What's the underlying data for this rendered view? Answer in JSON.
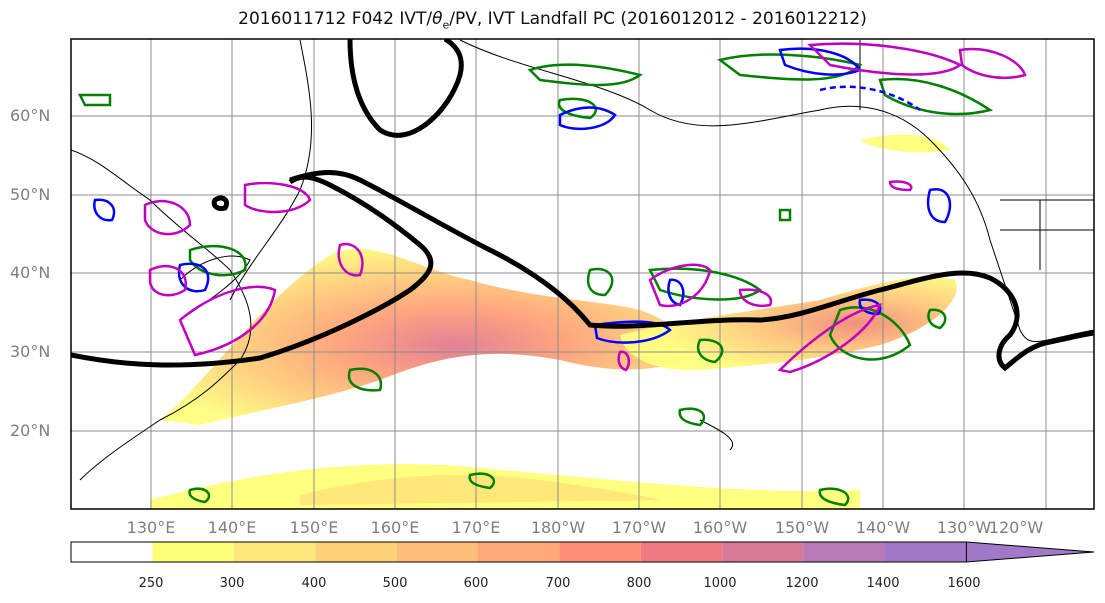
{
  "title_prefix": "2016011712 F042 IVT/",
  "title_theta": "θ",
  "title_sub": "e",
  "title_suffix": "/PV, IVT Landfall PC (2016012012 - 2016012212)",
  "lat_labels": [
    "60°N",
    "50°N",
    "40°N",
    "30°N",
    "20°N"
  ],
  "lon_labels": [
    "130°E",
    "140°E",
    "150°E",
    "160°E",
    "170°E",
    "180°W",
    "170°W",
    "160°W",
    "150°W",
    "140°W",
    "130°W",
    "120°W"
  ],
  "colorbar": {
    "ticks": [
      "250",
      "300",
      "400",
      "500",
      "600",
      "700",
      "800",
      "1000",
      "1200",
      "1400",
      "1600"
    ],
    "colors": [
      "#ffffff",
      "#ffff78",
      "#ffe77a",
      "#ffd27a",
      "#ffbe7a",
      "#ffa878",
      "#ff8f78",
      "#f07a80",
      "#d87a98",
      "#b87ab8",
      "#a07ac8"
    ]
  },
  "contour_colors": {
    "jet": "#000000",
    "pv": "#0000ff",
    "theta": "#008000",
    "ivt_pc": "#c000c0"
  }
}
